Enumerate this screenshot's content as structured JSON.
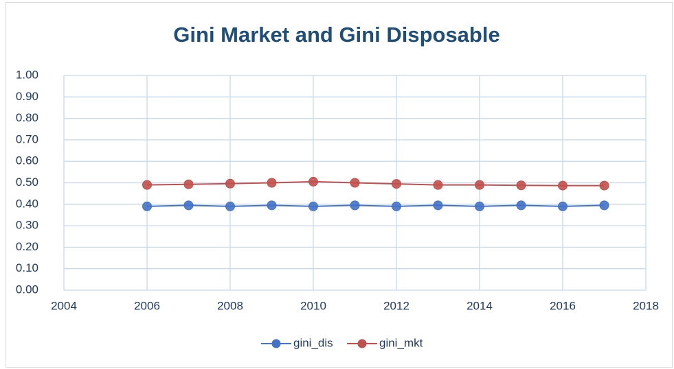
{
  "chart_data": {
    "type": "line",
    "title": "Gini Market and Gini Disposable",
    "x": [
      2006,
      2007,
      2008,
      2009,
      2010,
      2011,
      2012,
      2013,
      2014,
      2015,
      2016,
      2017
    ],
    "series": [
      {
        "name": "gini_dis",
        "color": "#4472c4",
        "values": [
          0.39,
          0.395,
          0.39,
          0.395,
          0.39,
          0.395,
          0.39,
          0.395,
          0.39,
          0.395,
          0.39,
          0.395
        ]
      },
      {
        "name": "gini_mkt",
        "color": "#c0504d",
        "values": [
          0.49,
          0.493,
          0.496,
          0.5,
          0.505,
          0.5,
          0.495,
          0.49,
          0.49,
          0.488,
          0.487,
          0.487
        ]
      }
    ],
    "xlim": [
      2004,
      2018
    ],
    "xticks": [
      2004,
      2006,
      2008,
      2010,
      2012,
      2014,
      2016,
      2018
    ],
    "ylim": [
      0,
      1
    ],
    "yticks": [
      {
        "value": 0,
        "label": "0.00"
      },
      {
        "value": 0.1,
        "label": "0.10"
      },
      {
        "value": 0.2,
        "label": "0.20"
      },
      {
        "value": 0.3,
        "label": "0.30"
      },
      {
        "value": 0.4,
        "label": "0.40"
      },
      {
        "value": 0.5,
        "label": "0.50"
      },
      {
        "value": 0.6,
        "label": "0.60"
      },
      {
        "value": 0.7,
        "label": "0.70"
      },
      {
        "value": 0.8,
        "label": "0.80"
      },
      {
        "value": 0.9,
        "label": "0.90"
      },
      {
        "value": 1,
        "label": "1.00"
      }
    ],
    "grid": true,
    "legend": "bottom"
  }
}
